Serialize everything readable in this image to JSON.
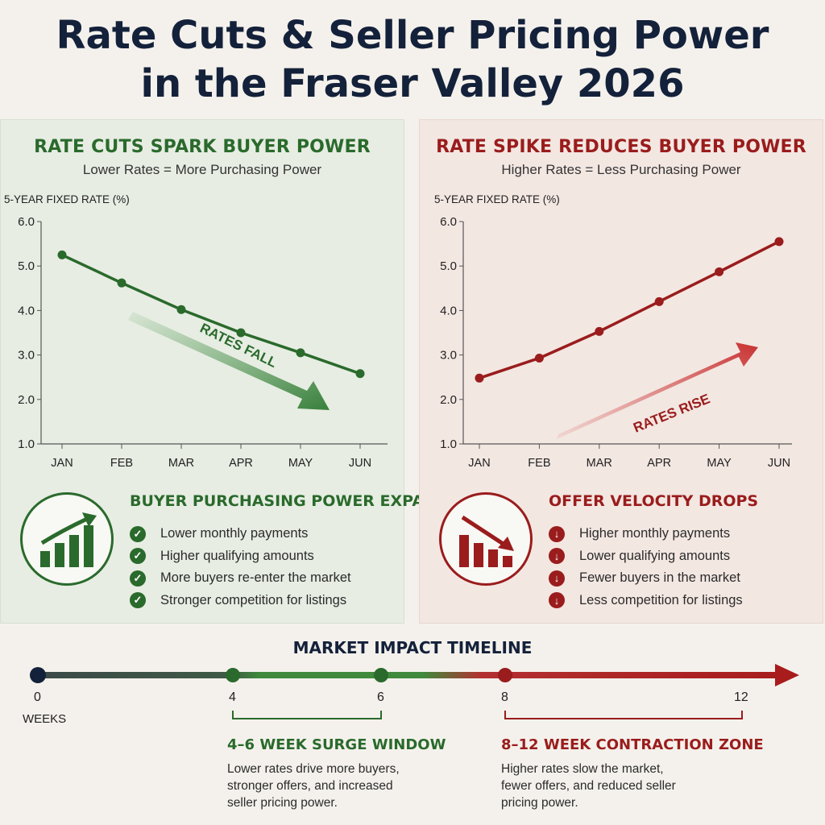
{
  "title_line1": "Rate Cuts & Seller Pricing Power",
  "title_line2": "in the Fraser Valley 2026",
  "colors": {
    "green": "#2a6a2c",
    "red": "#9a1c1c",
    "dark": "#14213a"
  },
  "left_panel": {
    "heading": "RATE CUTS SPARK BUYER POWER",
    "subheading": "Lower Rates = More Purchasing Power",
    "arrow_label": "RATES FALL",
    "icon": "bar-chart-up-icon",
    "impact_heading": "BUYER PURCHASING POWER EXPANDS",
    "bullet_icon": "check-circle-icon",
    "items": [
      "Lower monthly payments",
      "Higher qualifying amounts",
      "More buyers re-enter the market",
      "Stronger competition for listings"
    ]
  },
  "right_panel": {
    "heading": "RATE SPIKE REDUCES BUYER POWER",
    "subheading": "Higher Rates = Less Purchasing Power",
    "arrow_label": "RATES RISE",
    "icon": "bar-chart-down-icon",
    "impact_heading": "OFFER VELOCITY DROPS",
    "bullet_icon": "down-arrow-circle-icon",
    "items": [
      "Higher monthly payments",
      "Lower qualifying amounts",
      "Fewer buyers in the market",
      "Less competition for listings"
    ]
  },
  "chart_data": [
    {
      "type": "line",
      "ylabel": "5-YEAR FIXED RATE (%)",
      "categories": [
        "JAN",
        "FEB",
        "MAR",
        "APR",
        "MAY",
        "JUN"
      ],
      "values": [
        5.25,
        4.62,
        4.02,
        3.5,
        3.05,
        2.58
      ],
      "ylim": [
        1.0,
        6.0
      ],
      "yticks": [
        "1.0",
        "2.0",
        "3.0",
        "4.0",
        "5.0",
        "6.0"
      ],
      "color": "#2a6a2c",
      "grid": false
    },
    {
      "type": "line",
      "ylabel": "5-YEAR FIXED RATE (%)",
      "categories": [
        "JAN",
        "FEB",
        "MAR",
        "APR",
        "MAY",
        "JUN"
      ],
      "values": [
        2.48,
        2.93,
        3.53,
        4.2,
        4.87,
        5.55
      ],
      "ylim": [
        1.0,
        6.0
      ],
      "yticks": [
        "1.0",
        "2.0",
        "3.0",
        "4.0",
        "5.0",
        "6.0"
      ],
      "color": "#9a1c1c",
      "grid": false
    }
  ],
  "timeline": {
    "title": "MARKET IMPACT TIMELINE",
    "unit": "WEEKS",
    "markers": [
      "0",
      "4",
      "6",
      "8",
      "12"
    ],
    "surge_title": "4–6 WEEK SURGE WINDOW",
    "surge_text": "Lower rates drive more buyers, stronger offers, and increased seller pricing power.",
    "contraction_title": "8–12 WEEK CONTRACTION ZONE",
    "contraction_text": "Higher rates slow the market, fewer offers, and reduced seller pricing power."
  }
}
